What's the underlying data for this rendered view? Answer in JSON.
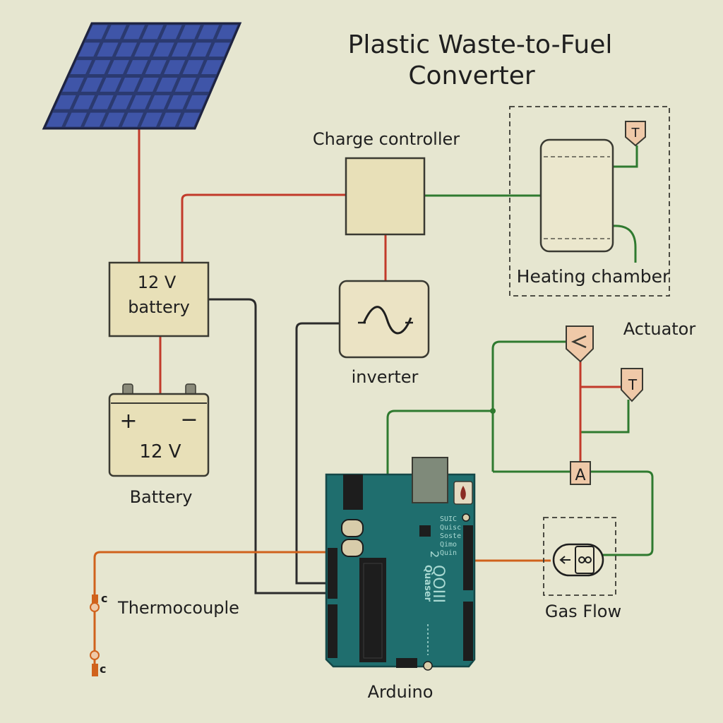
{
  "title": {
    "line1": "Plastic Waste-to-Fuel",
    "line2": "Converter"
  },
  "labels": {
    "charge_controller": "Charge controller",
    "heating_chamber": "Heating chamber",
    "battery_block_line1": "12 V",
    "battery_block_line2": "battery",
    "inverter": "inverter",
    "actuator": "Actuator",
    "battery_caption": "Battery",
    "battery_voltage": "12 V",
    "battery_plus": "+",
    "battery_minus": "−",
    "thermocouple": "Thermocouple",
    "thermocouple_tag_top": "c",
    "thermocouple_tag_bottom": "c",
    "gas_flow": "Gas Flow",
    "arduino": "Arduino",
    "sensor_T_heating": "T",
    "sensor_T_actuator": "T",
    "valve_A": "A",
    "board_text_1": "SUIC",
    "board_text_2": "Quisc",
    "board_text_3": "Soste",
    "board_text_4": "Qimo",
    "board_text_5": "Quin",
    "board_logo": "Quaser",
    "board_digits": "QOIII",
    "board_num": "2"
  },
  "colors": {
    "background": "#e6e6d0",
    "wire_power": "#c23a2a",
    "wire_signal": "#2f7a2f",
    "wire_ground": "#2b2b2b",
    "wire_sensor": "#d0621c",
    "arduino_board": "#1f6e6e",
    "solar_cell": "#3f55a8",
    "box_fill": "#e8e0b8",
    "sensor_fill": "#efc9a8"
  },
  "icons": {
    "solar_panel": "solar-panel-icon",
    "inverter": "sine-wave-icon",
    "gas_flow": "flow-sensor-icon",
    "actuator": "valve-icon",
    "thermocouple": "thermocouple-icon"
  }
}
